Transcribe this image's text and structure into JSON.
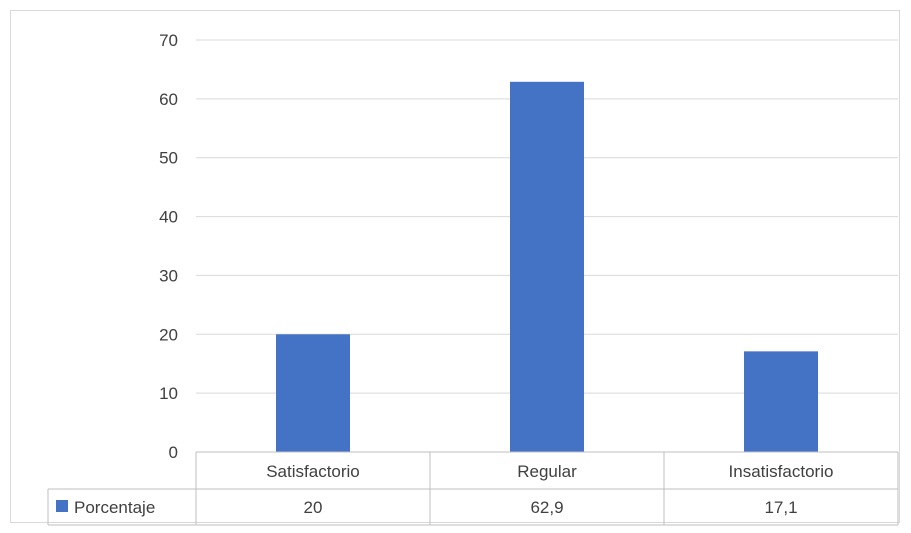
{
  "chart_data": {
    "type": "bar",
    "categories": [
      "Satisfactorio",
      "Regular",
      "Insatisfactorio"
    ],
    "series": [
      {
        "name": "Porcentaje",
        "values": [
          20,
          62.9,
          17.1
        ],
        "value_labels": [
          "20",
          "62,9",
          "17,1"
        ],
        "color": "#4472c4"
      }
    ],
    "yticks": [
      "0",
      "10",
      "20",
      "30",
      "40",
      "50",
      "60",
      "70"
    ],
    "ylim": [
      0,
      70
    ],
    "grid": true,
    "legend": "data-table-left",
    "data_table": true
  }
}
